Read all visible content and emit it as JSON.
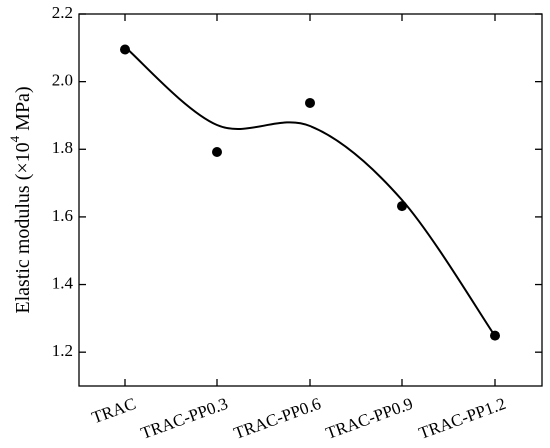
{
  "chart_data": {
    "type": "scatter",
    "title": "",
    "xlabel": "",
    "ylabel": "Elastic modulus (×10⁴ MPa)",
    "ylabel_parts": {
      "prefix": "Elastic modulus (×10",
      "sup": "4",
      "suffix": " MPa)"
    },
    "categories": [
      "TRAC",
      "TRAC-PP0.3",
      "TRAC-PP0.6",
      "TRAC-PP0.9",
      "TRAC-PP1.2"
    ],
    "series": [
      {
        "values": [
          2.095,
          1.792,
          1.937,
          1.632,
          1.249
        ],
        "marker": "circle",
        "trend_line": "smooth spline"
      }
    ],
    "ylim": [
      1.1,
      2.2
    ],
    "yticks": [
      "1.2",
      "1.4",
      "1.6",
      "1.8",
      "2.0",
      "2.2"
    ],
    "grid": false,
    "legend": "none",
    "colors": {
      "marker": "#000000",
      "line": "#000000",
      "axis": "#000000"
    }
  }
}
